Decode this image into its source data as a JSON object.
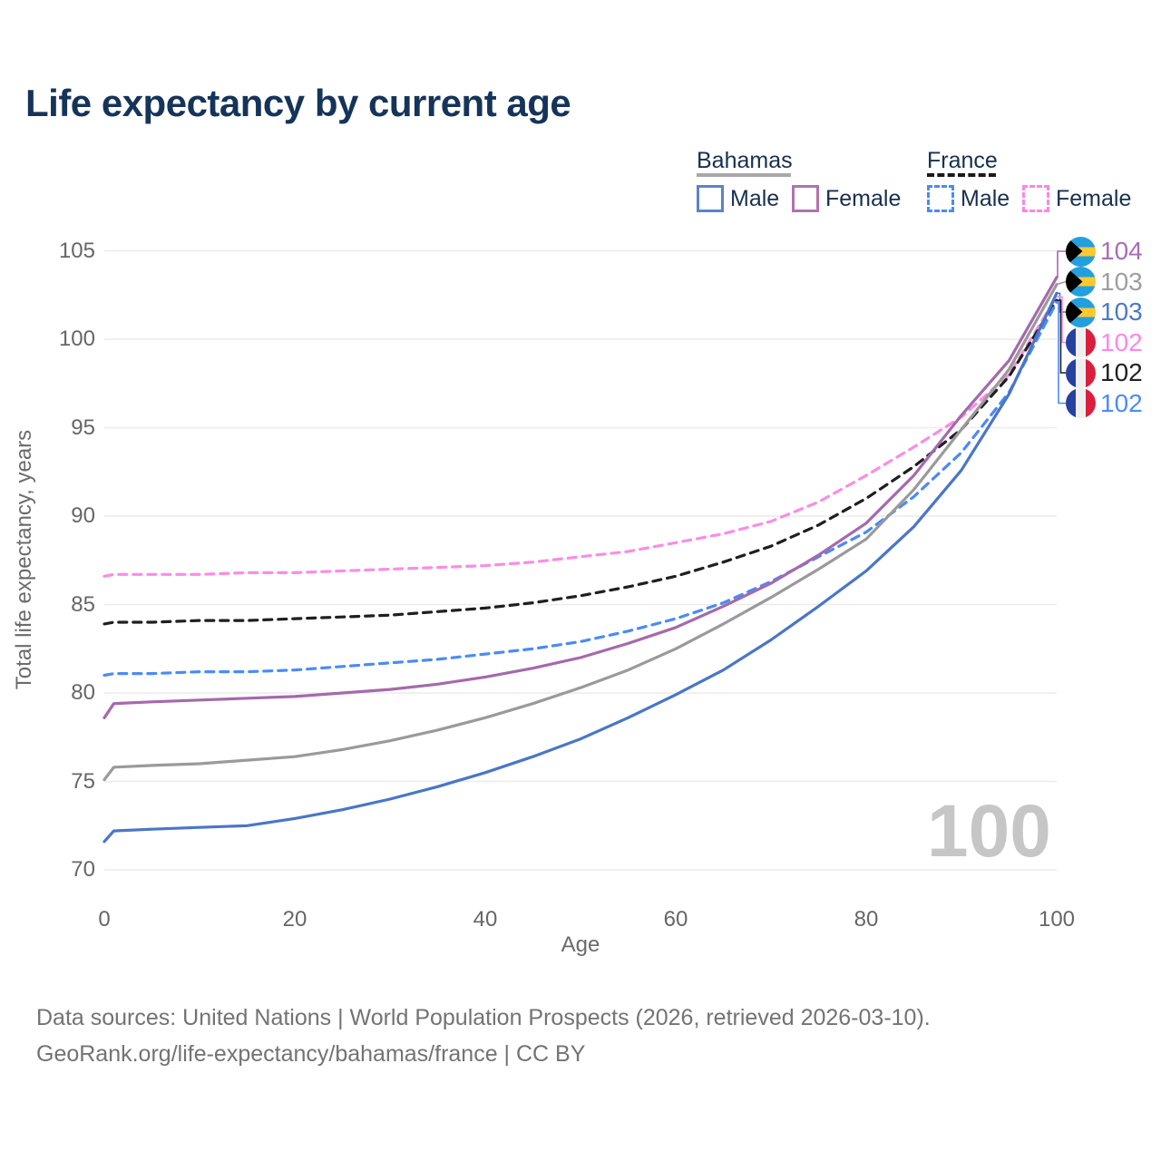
{
  "title": "Life expectancy by current age",
  "legend": {
    "bahamas": {
      "title": "Bahamas",
      "male": "Male",
      "female": "Female"
    },
    "france": {
      "title": "France",
      "male": "Male",
      "female": "Female"
    }
  },
  "footer": {
    "line1": "Data sources: United Nations | World Population Prospects (2026, retrieved 2026-03-10).",
    "line2": "GeoRank.org/life-expectancy/bahamas/france | CC BY"
  },
  "colors": {
    "title_text": "#16345a",
    "axis_text": "#6b6b6b",
    "grid": "#ececec",
    "watermark": "#c6c6c6",
    "bahamas_underline": "#a8a8a8",
    "france_underline": "#1a1a1a"
  },
  "chart_data": {
    "type": "line",
    "title": "Life expectancy by current age",
    "xlabel": "Age",
    "ylabel": "Total life expectancy, years",
    "watermark": "100",
    "x": [
      0,
      1,
      5,
      10,
      15,
      20,
      25,
      30,
      35,
      40,
      45,
      50,
      55,
      60,
      65,
      70,
      75,
      80,
      85,
      90,
      95,
      100
    ],
    "xlim": [
      0,
      100
    ],
    "ylim": [
      70,
      105
    ],
    "xticks": [
      0,
      20,
      40,
      60,
      80,
      100
    ],
    "yticks": [
      70,
      75,
      80,
      85,
      90,
      95,
      100,
      105
    ],
    "grid": "horizontal",
    "legend_position": "top-right",
    "series": [
      {
        "name": "Bahamas Female",
        "country": "Bahamas",
        "sex": "female",
        "color": "#a569ad",
        "style": "solid",
        "end_label": "104",
        "end_label_color": "#a76fb5",
        "values": [
          78.6,
          79.4,
          79.5,
          79.6,
          79.7,
          79.8,
          80.0,
          80.2,
          80.5,
          80.9,
          81.4,
          82.0,
          82.8,
          83.7,
          84.9,
          86.2,
          87.8,
          89.6,
          92.3,
          95.7,
          98.8,
          103.5
        ]
      },
      {
        "name": "Bahamas Both sexes",
        "country": "Bahamas",
        "sex": "both",
        "color": "#9a9a9a",
        "style": "solid",
        "end_label": "103",
        "end_label_color": "#9e9e9e",
        "values": [
          75.1,
          75.8,
          75.9,
          76.0,
          76.2,
          76.4,
          76.8,
          77.3,
          77.9,
          78.6,
          79.4,
          80.3,
          81.3,
          82.5,
          83.9,
          85.4,
          87.0,
          88.7,
          91.5,
          94.9,
          98.3,
          103.1
        ]
      },
      {
        "name": "Bahamas Male",
        "country": "Bahamas",
        "sex": "male",
        "color": "#4a76c8",
        "style": "solid",
        "end_label": "103",
        "end_label_color": "#4b79c9",
        "values": [
          71.6,
          72.2,
          72.3,
          72.4,
          72.5,
          72.9,
          73.4,
          74.0,
          74.7,
          75.5,
          76.4,
          77.4,
          78.6,
          79.9,
          81.3,
          83.0,
          84.9,
          86.9,
          89.4,
          92.6,
          96.9,
          102.6
        ]
      },
      {
        "name": "France Female",
        "country": "France",
        "sex": "female",
        "color": "#fb8ce5",
        "style": "dashed",
        "end_label": "102",
        "end_label_color": "#fd87e8",
        "values": [
          86.6,
          86.7,
          86.7,
          86.7,
          86.8,
          86.8,
          86.9,
          87.0,
          87.1,
          87.2,
          87.4,
          87.7,
          88.0,
          88.5,
          89.0,
          89.7,
          90.8,
          92.3,
          93.9,
          95.6,
          98.0,
          102.4
        ]
      },
      {
        "name": "France Both sexes",
        "country": "France",
        "sex": "both",
        "color": "#1f1f1f",
        "style": "dashed",
        "end_label": "102",
        "end_label_color": "#222222",
        "values": [
          83.9,
          84.0,
          84.0,
          84.1,
          84.1,
          84.2,
          84.3,
          84.4,
          84.6,
          84.8,
          85.1,
          85.5,
          86.0,
          86.6,
          87.4,
          88.3,
          89.5,
          91.0,
          92.8,
          94.9,
          97.9,
          102.2
        ]
      },
      {
        "name": "France Male",
        "country": "France",
        "sex": "male",
        "color": "#4b8bf5",
        "style": "dashed",
        "end_label": "102",
        "end_label_color": "#4a8cf7",
        "values": [
          81.0,
          81.1,
          81.1,
          81.2,
          81.2,
          81.3,
          81.5,
          81.7,
          81.9,
          82.2,
          82.5,
          82.9,
          83.5,
          84.2,
          85.1,
          86.3,
          87.7,
          89.1,
          91.1,
          93.6,
          97.0,
          102.1
        ]
      }
    ]
  }
}
